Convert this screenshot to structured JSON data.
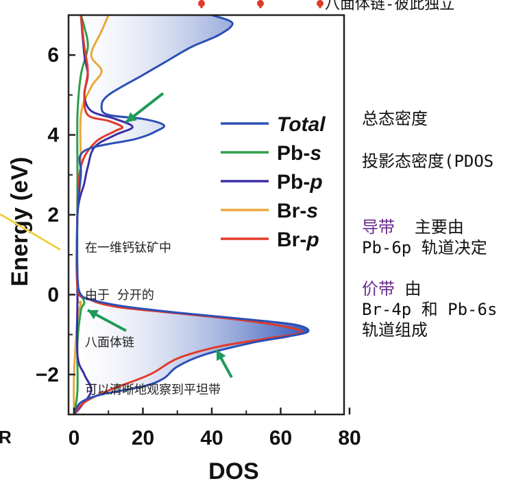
{
  "chart_data": {
    "type": "line",
    "ylabel": "Energy (eV)",
    "xlabel": "DOS",
    "xlim": [
      0,
      80
    ],
    "ylim": [
      -3,
      7
    ],
    "xticks": [
      "0",
      "20",
      "40",
      "60",
      "80"
    ],
    "yticks": [
      "-2",
      "0",
      "2",
      "4",
      "6"
    ],
    "legend_position": "right",
    "series": [
      {
        "name": "Total",
        "color": "#2b4fb5",
        "points": [
          [
            0,
            -3
          ],
          [
            2,
            -2.7
          ],
          [
            8,
            -2.5
          ],
          [
            20,
            -2.3
          ],
          [
            26,
            -2.1
          ],
          [
            30,
            -1.8
          ],
          [
            38,
            -1.5
          ],
          [
            52,
            -1.2
          ],
          [
            62,
            -1.05
          ],
          [
            68,
            -0.92
          ],
          [
            64,
            -0.75
          ],
          [
            48,
            -0.6
          ],
          [
            30,
            -0.45
          ],
          [
            15,
            -0.3
          ],
          [
            6,
            -0.15
          ],
          [
            2,
            0
          ],
          [
            1,
            0.5
          ],
          [
            1,
            2
          ],
          [
            2,
            3
          ],
          [
            3,
            3.6
          ],
          [
            18,
            3.9
          ],
          [
            24,
            4.1
          ],
          [
            26,
            4.25
          ],
          [
            20,
            4.4
          ],
          [
            10,
            4.5
          ],
          [
            8,
            4.7
          ],
          [
            10,
            5.0
          ],
          [
            20,
            5.5
          ],
          [
            26,
            5.8
          ],
          [
            34,
            6.2
          ],
          [
            42,
            6.5
          ],
          [
            46,
            6.8
          ],
          [
            40,
            7
          ]
        ]
      },
      {
        "name": "Pb-s",
        "color": "#2e9e4a",
        "points": [
          [
            0,
            -3
          ],
          [
            1,
            -2.4
          ],
          [
            1,
            -1.2
          ],
          [
            2,
            -0.4
          ],
          [
            3,
            -0.2
          ],
          [
            2,
            0
          ],
          [
            1,
            0.3
          ],
          [
            1,
            3
          ],
          [
            1,
            4.5
          ],
          [
            2,
            5.5
          ],
          [
            4,
            6.2
          ],
          [
            3,
            6.7
          ],
          [
            2,
            7
          ]
        ]
      },
      {
        "name": "Pb-p",
        "color": "#3a2ea6",
        "points": [
          [
            0,
            -3
          ],
          [
            2,
            -2.8
          ],
          [
            5,
            -2.4
          ],
          [
            3,
            -2.0
          ],
          [
            1,
            -1.5
          ],
          [
            1,
            0
          ],
          [
            1,
            2
          ],
          [
            3,
            2.8
          ],
          [
            4,
            3.2
          ],
          [
            6,
            3.7
          ],
          [
            12,
            4.0
          ],
          [
            17,
            4.2
          ],
          [
            12,
            4.4
          ],
          [
            5,
            4.6
          ],
          [
            3,
            5.0
          ],
          [
            4,
            5.5
          ],
          [
            3,
            6
          ],
          [
            2,
            7
          ]
        ]
      },
      {
        "name": "Br-s",
        "color": "#e8a83a",
        "points": [
          [
            0,
            -3
          ],
          [
            0,
            -2
          ],
          [
            1,
            -0.6
          ],
          [
            2,
            -0.2
          ],
          [
            1,
            0
          ],
          [
            1,
            2
          ],
          [
            2,
            3
          ],
          [
            2,
            4.5
          ],
          [
            5,
            5.2
          ],
          [
            8,
            5.6
          ],
          [
            5,
            6.0
          ],
          [
            8,
            6.6
          ],
          [
            10,
            7
          ]
        ]
      },
      {
        "name": "Br-p",
        "color": "#e03a2a",
        "points": [
          [
            0,
            -3
          ],
          [
            3,
            -2.7
          ],
          [
            10,
            -2.4
          ],
          [
            22,
            -2.0
          ],
          [
            30,
            -1.6
          ],
          [
            42,
            -1.3
          ],
          [
            56,
            -1.1
          ],
          [
            66,
            -0.95
          ],
          [
            60,
            -0.78
          ],
          [
            45,
            -0.6
          ],
          [
            28,
            -0.45
          ],
          [
            12,
            -0.3
          ],
          [
            4,
            -0.1
          ],
          [
            1,
            0.2
          ],
          [
            1,
            2
          ],
          [
            2,
            3.2
          ],
          [
            6,
            3.8
          ],
          [
            12,
            4.1
          ],
          [
            14,
            4.2
          ],
          [
            10,
            4.35
          ],
          [
            4,
            4.5
          ],
          [
            3,
            5
          ],
          [
            4,
            5.6
          ],
          [
            3,
            6.2
          ],
          [
            2,
            7
          ]
        ]
      }
    ]
  },
  "plot_text": {
    "line1": "在一维钙钛矿中",
    "line2": "由于 分开的",
    "line3": "八面体链",
    "line4": "可以清晰地观察到平坦带"
  },
  "top_note": "八面体链-彼此独立",
  "notes": {
    "total_dos": "总态密度",
    "pdos": "投影态密度(PDOS",
    "cb_label": "导带",
    "cb_rest": "  主要由",
    "cb_line2": "Pb-6p 轨道决定",
    "vb_label": "价带",
    "vb_rest": " 由",
    "vb_line2": "Br-4p 和 Pb-6s",
    "vb_line3": "轨道组成"
  },
  "left_edge_letter": "R",
  "colors": {
    "arrow": "#1f9a5a",
    "axis": "#222222",
    "fill": "#2b4fb5",
    "top_marker": "#e03a2a",
    "yellow_line": "#f0d040",
    "purple_text": "#6a2c8e"
  }
}
